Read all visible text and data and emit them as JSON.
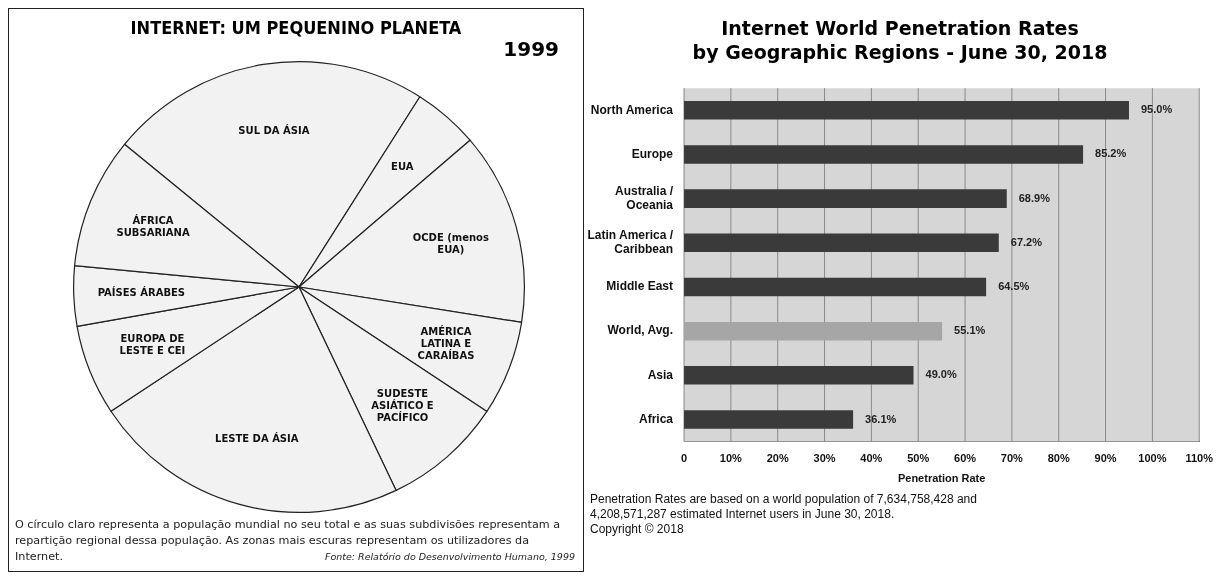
{
  "chart_data": [
    {
      "type": "pie",
      "title": "INTERNET: UM PEQUENINO PLANETA",
      "subtitle": "1999",
      "categories": [
        "SUL DA ÁSIA",
        "EUA",
        "OCDE (menos EUA)",
        "AMÉRICA LATINA E CARAÍBAS",
        "SUDESTE ASIÁTICO E PACÍFICO",
        "LESTE DA ÁSIA",
        "EUROPA DE LESTE E CEI",
        "PAÍSES ÁRABES",
        "ÁFRICA SUBSARIANA"
      ],
      "values": [
        23.1,
        4.7,
        13.8,
        6.8,
        8.6,
        22.8,
        6.5,
        4.3,
        9.4
      ],
      "colors": [
        "#f2f2f2",
        "#f2f2f2",
        "#f2f2f2",
        "#f2f2f2",
        "#f2f2f2",
        "#f2f2f2",
        "#f2f2f2",
        "#f2f2f2",
        "#f2f2f2"
      ],
      "annotations": [
        "O círculo claro representa a população mundial no seu total e as suas subdivisões representam a repartição regional dessa população. As zonas mais escuras representam os utilizadores da Internet.",
        "Fonte: Relatório do Desenvolvimento Humano, 1999"
      ]
    },
    {
      "type": "bar",
      "orientation": "horizontal",
      "title": "Internet World Penetration Rates",
      "subtitle": "by Geographic Regions - June 30, 2018",
      "xlabel": "Penetration Rate",
      "categories": [
        "North America",
        "Europe",
        "Australia / Oceania",
        "Latin America / Caribbean",
        "Middle East",
        "World, Avg.",
        "Asia",
        "Africa"
      ],
      "values": [
        95.0,
        85.2,
        68.9,
        67.2,
        64.5,
        55.1,
        49.0,
        36.1
      ],
      "colors": [
        "#3a3a3a",
        "#3a3a3a",
        "#3a3a3a",
        "#3a3a3a",
        "#3a3a3a",
        "#a6a6a6",
        "#3a3a3a",
        "#3a3a3a"
      ],
      "value_labels": [
        "95.0%",
        "85.2%",
        "68.9%",
        "67.2%",
        "64.5%",
        "55.1%",
        "49.0%",
        "36.1%"
      ],
      "xlim": [
        0,
        110
      ],
      "xticks": [
        {
          "value": 0,
          "label": "0"
        },
        {
          "value": 10,
          "label": "10%"
        },
        {
          "value": 20,
          "label": "20%"
        },
        {
          "value": 30,
          "label": "30%"
        },
        {
          "value": 40,
          "label": "40%"
        },
        {
          "value": 50,
          "label": "50%"
        },
        {
          "value": 60,
          "label": "60%"
        },
        {
          "value": 70,
          "label": "70%"
        },
        {
          "value": 80,
          "label": "80%"
        },
        {
          "value": 90,
          "label": "90%"
        },
        {
          "value": 100,
          "label": "100%"
        },
        {
          "value": 110,
          "label": "110%"
        }
      ],
      "grid": "x",
      "legend": false,
      "annotations": [
        "Penetration Rates are based on a world population of 7,634,758,428 and 4,208,571,287 estimated Internet users in June 30, 2018.",
        "Copyright © 2018"
      ]
    }
  ]
}
